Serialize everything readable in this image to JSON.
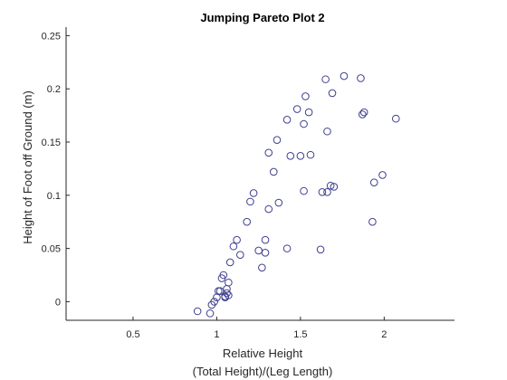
{
  "chart_data": {
    "type": "scatter",
    "title": "Jumping Pareto Plot 2",
    "xlabel": [
      "Relative Height",
      "(Total Height)/(Leg Length)"
    ],
    "ylabel": "Height of Foot off Ground (m)",
    "xlim": [
      0.1,
      2.42
    ],
    "ylim": [
      -0.0175,
      0.258
    ],
    "xticks": [
      0.5,
      1,
      1.5,
      2
    ],
    "xtick_labels": [
      "0.5",
      "1",
      "1.5",
      "2"
    ],
    "yticks": [
      0,
      0.05,
      0.1,
      0.15,
      0.2,
      0.25
    ],
    "ytick_labels": [
      "0",
      "0.05",
      "0.1",
      "0.15",
      "0.2",
      "0.25"
    ],
    "grid": false,
    "marker": "open-circle",
    "marker_color": "#3F3F8F",
    "series": [
      {
        "x": [
          0.885,
          0.96,
          0.97,
          0.985,
          1.0,
          1.01,
          1.02,
          1.03,
          1.04,
          1.05,
          1.06,
          1.06,
          1.05,
          1.07,
          1.07,
          1.08,
          1.1,
          1.12,
          1.14,
          1.18,
          1.2,
          1.22,
          1.25,
          1.27,
          1.29,
          1.29,
          1.31,
          1.31,
          1.34,
          1.36,
          1.37,
          1.42,
          1.42,
          1.44,
          1.48,
          1.5,
          1.52,
          1.52,
          1.53,
          1.55,
          1.56,
          1.62,
          1.63,
          1.65,
          1.66,
          1.66,
          1.68,
          1.69,
          1.76,
          1.86,
          1.87,
          1.88,
          1.93,
          1.94,
          1.99,
          2.07,
          1.7
        ],
        "y": [
          -0.009,
          -0.011,
          -0.003,
          0.0,
          0.004,
          0.01,
          0.01,
          0.022,
          0.025,
          0.004,
          0.008,
          0.012,
          0.005,
          0.006,
          0.018,
          0.037,
          0.052,
          0.058,
          0.044,
          0.075,
          0.094,
          0.102,
          0.048,
          0.032,
          0.046,
          0.058,
          0.087,
          0.14,
          0.122,
          0.152,
          0.093,
          0.05,
          0.171,
          0.137,
          0.181,
          0.137,
          0.167,
          0.104,
          0.193,
          0.178,
          0.138,
          0.049,
          0.103,
          0.209,
          0.16,
          0.103,
          0.109,
          0.196,
          0.212,
          0.21,
          0.176,
          0.178,
          0.075,
          0.112,
          0.119,
          0.172,
          0.108
        ]
      }
    ]
  }
}
